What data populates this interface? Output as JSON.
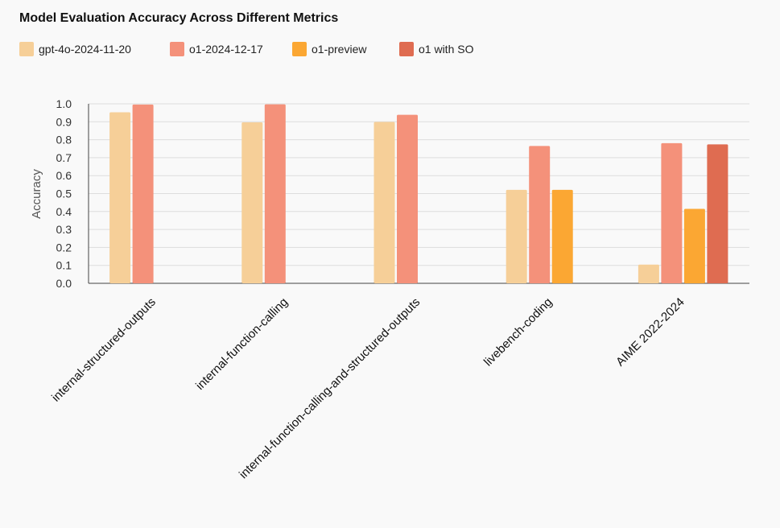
{
  "chart_data": {
    "type": "bar",
    "title": "Model Evaluation Accuracy Across Different Metrics",
    "ylabel": "Accuracy",
    "xlabel": "",
    "ylim": [
      0,
      1.0
    ],
    "yticks": [
      "0.0",
      "0.1",
      "0.2",
      "0.3",
      "0.4",
      "0.5",
      "0.6",
      "0.7",
      "0.8",
      "0.9",
      "1.0"
    ],
    "grid": true,
    "legend_position": "top-left",
    "categories": [
      "internal-structured-outputs",
      "internal-function-calling",
      "internal-function-calling-and-structured-outputs",
      "livebench-coding",
      "AIME 2022-2024"
    ],
    "series": [
      {
        "name": "gpt-4o-2024-11-20",
        "color": "#f6cf98",
        "values": [
          0.953,
          0.897,
          0.899,
          0.521,
          0.104
        ]
      },
      {
        "name": "o1-2024-12-17",
        "color": "#f4917a",
        "values": [
          0.996,
          0.997,
          0.939,
          0.765,
          0.781
        ]
      },
      {
        "name": "o1-preview",
        "color": "#fba733",
        "values": [
          null,
          null,
          null,
          0.521,
          0.415
        ]
      },
      {
        "name": "o1 with SO",
        "color": "#df6c51",
        "values": [
          null,
          null,
          null,
          null,
          0.774
        ]
      }
    ]
  }
}
